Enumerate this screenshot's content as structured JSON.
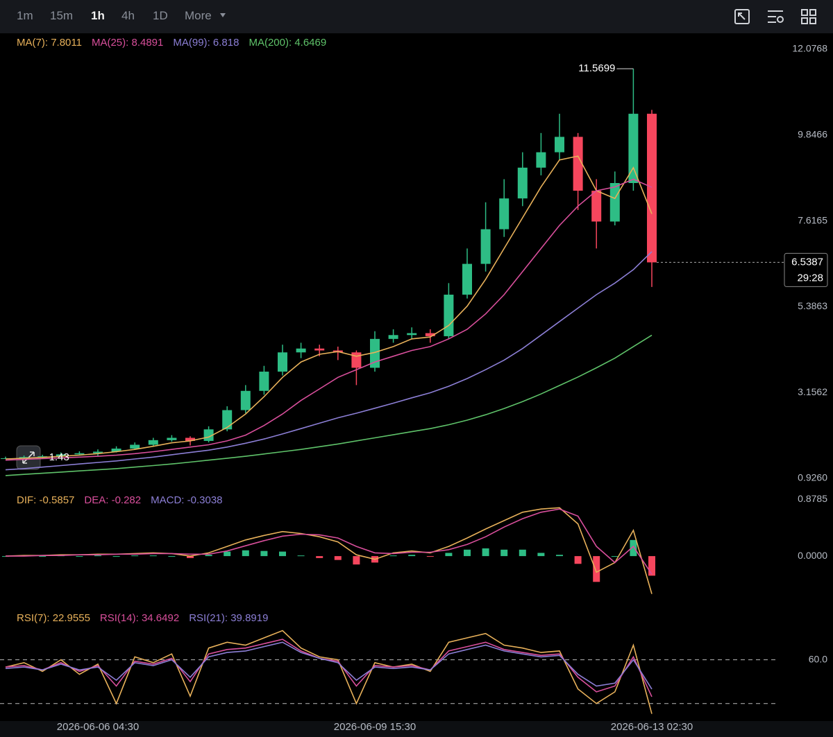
{
  "toolbar": {
    "intervals": [
      "1m",
      "15m",
      "1h",
      "4h",
      "1D",
      "More"
    ],
    "active": 2
  },
  "chart_data": [
    {
      "type": "candlestick",
      "categories": [
        null,
        null,
        null,
        null,
        null,
        "2026-06-06 04:30",
        null,
        null,
        null,
        null,
        null,
        null,
        null,
        null,
        null,
        null,
        null,
        null,
        null,
        null,
        "2026-06-09 15:30",
        null,
        null,
        null,
        null,
        null,
        null,
        null,
        null,
        null,
        null,
        null,
        null,
        null,
        null,
        "2026-06-13 02:30"
      ],
      "open": [
        1.44,
        1.45,
        1.48,
        1.5,
        1.55,
        1.58,
        1.62,
        1.7,
        1.8,
        1.92,
        1.98,
        1.9,
        2.2,
        2.7,
        3.2,
        3.7,
        4.2,
        4.3,
        4.25,
        4.2,
        3.8,
        4.55,
        4.65,
        4.7,
        4.62,
        5.7,
        6.5,
        7.4,
        8.2,
        9.0,
        9.4,
        9.8,
        8.4,
        7.6,
        8.6,
        10.4
      ],
      "high": [
        1.49,
        1.52,
        1.54,
        1.6,
        1.63,
        1.68,
        1.76,
        1.86,
        1.98,
        2.05,
        2.02,
        2.28,
        2.8,
        3.35,
        3.85,
        4.4,
        4.45,
        4.4,
        4.35,
        4.25,
        4.75,
        4.8,
        4.85,
        4.8,
        6.0,
        6.9,
        8.1,
        8.7,
        9.4,
        9.9,
        10.4,
        9.9,
        8.7,
        8.9,
        11.5699,
        10.5
      ],
      "low": [
        1.4329,
        1.43,
        1.45,
        1.48,
        1.52,
        1.5,
        1.6,
        1.68,
        1.76,
        1.88,
        1.78,
        1.86,
        2.15,
        2.62,
        3.1,
        3.6,
        4.05,
        4.1,
        4.0,
        3.35,
        3.7,
        4.45,
        4.55,
        4.45,
        4.55,
        5.6,
        6.3,
        7.2,
        8.0,
        8.8,
        9.2,
        7.9,
        6.9,
        7.5,
        8.4,
        5.9
      ],
      "close": [
        1.45,
        1.48,
        1.5,
        1.55,
        1.58,
        1.62,
        1.7,
        1.8,
        1.92,
        1.98,
        1.9,
        2.2,
        2.7,
        3.2,
        3.7,
        4.2,
        4.3,
        4.25,
        4.2,
        3.8,
        4.55,
        4.65,
        4.7,
        4.62,
        5.7,
        6.5,
        7.4,
        8.2,
        9.0,
        9.4,
        9.8,
        8.4,
        7.6,
        8.6,
        10.4,
        6.5387
      ],
      "up_color": "#2ebd85",
      "down_color": "#f6465d",
      "countdown": "29:28",
      "series": [
        {
          "name": "MA(7)",
          "color": "#e8b15a",
          "values": [
            1.43,
            1.45,
            1.47,
            1.5,
            1.53,
            1.57,
            1.62,
            1.68,
            1.76,
            1.85,
            1.9,
            2.0,
            2.25,
            2.6,
            3.05,
            3.55,
            3.95,
            4.15,
            4.22,
            4.1,
            4.2,
            4.35,
            4.55,
            4.6,
            4.9,
            5.4,
            6.1,
            6.9,
            7.7,
            8.5,
            9.2,
            9.3,
            8.4,
            8.2,
            9.0,
            7.8011
          ]
        },
        {
          "name": "MA(25)",
          "color": "#d94f9c",
          "values": [
            1.4,
            1.42,
            1.44,
            1.46,
            1.48,
            1.5,
            1.53,
            1.57,
            1.62,
            1.68,
            1.74,
            1.8,
            1.9,
            2.05,
            2.3,
            2.6,
            2.95,
            3.25,
            3.55,
            3.75,
            3.95,
            4.1,
            4.25,
            4.35,
            4.55,
            4.8,
            5.2,
            5.7,
            6.3,
            6.9,
            7.5,
            8.0,
            8.4,
            8.5,
            8.7,
            8.4891
          ]
        },
        {
          "name": "MA(99)",
          "color": "#8c7fd6",
          "values": [
            1.15,
            1.18,
            1.22,
            1.26,
            1.3,
            1.34,
            1.38,
            1.43,
            1.48,
            1.54,
            1.6,
            1.66,
            1.74,
            1.84,
            1.95,
            2.08,
            2.22,
            2.36,
            2.5,
            2.62,
            2.75,
            2.88,
            3.02,
            3.15,
            3.32,
            3.52,
            3.75,
            4.0,
            4.3,
            4.65,
            5.0,
            5.35,
            5.7,
            6.0,
            6.35,
            6.818
          ]
        },
        {
          "name": "MA(200)",
          "color": "#5fc36a",
          "values": [
            1.0,
            1.03,
            1.06,
            1.09,
            1.12,
            1.15,
            1.18,
            1.22,
            1.26,
            1.3,
            1.35,
            1.4,
            1.45,
            1.5,
            1.56,
            1.62,
            1.68,
            1.75,
            1.82,
            1.9,
            1.98,
            2.06,
            2.14,
            2.22,
            2.32,
            2.44,
            2.58,
            2.74,
            2.92,
            3.12,
            3.34,
            3.56,
            3.8,
            4.05,
            4.35,
            4.6469
          ]
        }
      ],
      "ylim": [
        0.746,
        12.455
      ],
      "yticks": [
        12.0768,
        9.8466,
        7.6165,
        5.3863,
        3.1562,
        {
          "value": 0.926,
          "label": "0.9260"
        }
      ],
      "grid": false
    },
    {
      "type": "macd",
      "series": [
        {
          "name": "DIF",
          "color": "#e8b15a",
          "values": [
            0.0,
            0.01,
            0.01,
            0.02,
            0.02,
            0.03,
            0.03,
            0.04,
            0.05,
            0.04,
            0.0,
            0.05,
            0.15,
            0.25,
            0.32,
            0.38,
            0.35,
            0.3,
            0.22,
            0.02,
            -0.05,
            0.05,
            0.08,
            0.05,
            0.15,
            0.28,
            0.42,
            0.55,
            0.68,
            0.73,
            0.75,
            0.5,
            -0.25,
            -0.1,
            0.4,
            -0.5857
          ]
        },
        {
          "name": "DEA",
          "color": "#d94f9c",
          "values": [
            0.0,
            0.0,
            0.01,
            0.01,
            0.02,
            0.02,
            0.03,
            0.03,
            0.04,
            0.04,
            0.03,
            0.03,
            0.08,
            0.16,
            0.24,
            0.31,
            0.34,
            0.33,
            0.28,
            0.15,
            0.05,
            0.04,
            0.06,
            0.06,
            0.1,
            0.18,
            0.3,
            0.45,
            0.58,
            0.68,
            0.73,
            0.62,
            0.15,
            -0.1,
            0.15,
            -0.282
          ]
        }
      ],
      "histogram": {
        "name": "MACD",
        "color": "#8c7fd6",
        "values": [
          0.0,
          0.01,
          0.0,
          0.01,
          0.0,
          0.01,
          0.0,
          0.01,
          0.01,
          0.0,
          -0.03,
          0.02,
          0.07,
          0.09,
          0.08,
          0.07,
          0.01,
          -0.03,
          -0.06,
          -0.13,
          -0.1,
          0.01,
          0.02,
          -0.01,
          0.05,
          0.1,
          0.12,
          0.1,
          0.1,
          0.05,
          0.02,
          -0.12,
          -0.4,
          0.0,
          0.25,
          -0.3038
        ]
      },
      "ylim": [
        -0.73,
        0.99
      ],
      "yticks": [
        0.8785,
        {
          "value": 0,
          "label": "0.0000"
        }
      ]
    },
    {
      "type": "line",
      "series": [
        {
          "name": "RSI(7)",
          "color": "#e8b15a",
          "values": [
            55,
            58,
            52,
            60,
            50,
            57,
            30,
            62,
            58,
            64,
            35,
            68,
            72,
            70,
            75,
            80,
            68,
            62,
            60,
            30,
            58,
            55,
            57,
            52,
            72,
            75,
            78,
            70,
            68,
            65,
            66,
            40,
            30,
            38,
            70,
            22.9555
          ]
        },
        {
          "name": "RSI(14)",
          "color": "#d94f9c",
          "values": [
            55,
            56,
            53,
            58,
            52,
            56,
            42,
            59,
            57,
            61,
            45,
            64,
            67,
            68,
            71,
            74,
            66,
            61,
            59,
            42,
            56,
            55,
            56,
            53,
            66,
            69,
            72,
            67,
            65,
            63,
            64,
            48,
            38,
            42,
            62,
            34.6492
          ]
        },
        {
          "name": "RSI(21)",
          "color": "#8c7fd6",
          "values": [
            54,
            55,
            53,
            57,
            53,
            55,
            46,
            58,
            56,
            60,
            48,
            62,
            65,
            66,
            69,
            72,
            65,
            61,
            58,
            46,
            55,
            54,
            55,
            53,
            64,
            67,
            70,
            66,
            64,
            62,
            63,
            50,
            42,
            44,
            60,
            39.8919
          ]
        }
      ],
      "ylim": [
        18,
        94
      ],
      "yticks": [
        {
          "value": 60,
          "label": "60.0"
        }
      ],
      "levels": [
        30
      ]
    }
  ]
}
